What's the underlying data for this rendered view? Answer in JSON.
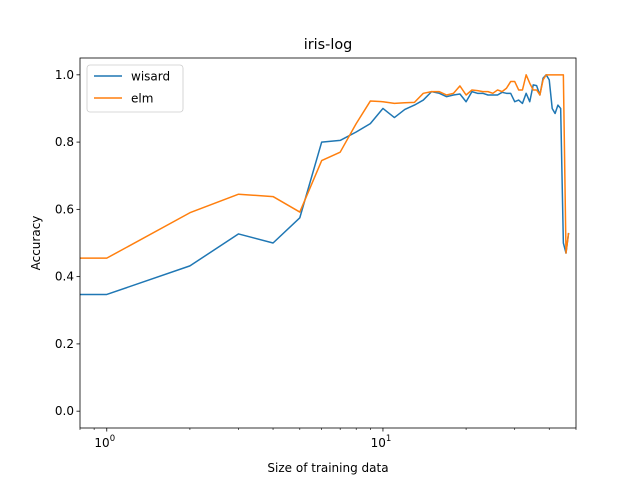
{
  "chart_data": {
    "type": "line",
    "title": "iris-log",
    "xlabel": "Size of training data",
    "ylabel": "Accuracy",
    "xscale": "log",
    "xlim": [
      0.8,
      50
    ],
    "ylim": [
      -0.05,
      1.05
    ],
    "xticks": [
      {
        "value": 1,
        "label": "10",
        "exp": "0"
      },
      {
        "value": 10,
        "label": "10",
        "exp": "1"
      }
    ],
    "yticks": [
      {
        "value": 0.0,
        "label": "0.0"
      },
      {
        "value": 0.2,
        "label": "0.2"
      },
      {
        "value": 0.4,
        "label": "0.4"
      },
      {
        "value": 0.6,
        "label": "0.6"
      },
      {
        "value": 0.8,
        "label": "0.8"
      },
      {
        "value": 1.0,
        "label": "1.0"
      }
    ],
    "legend": "top-left",
    "grid": false,
    "series": [
      {
        "name": "wisard",
        "color": "#1f77b4",
        "x": [
          0.8,
          1,
          2,
          3,
          4,
          5,
          6,
          7,
          8,
          9,
          10,
          11,
          12,
          13,
          14,
          15,
          16,
          17,
          18,
          19,
          20,
          21,
          22,
          23,
          24,
          25,
          26,
          27,
          28,
          29,
          30,
          31,
          32,
          33,
          34,
          35,
          36,
          37,
          38,
          39,
          40,
          41,
          42,
          43,
          44,
          45,
          46,
          47
        ],
        "y": [
          0.347,
          0.347,
          0.432,
          0.527,
          0.5,
          0.575,
          0.8,
          0.805,
          0.83,
          0.855,
          0.9,
          0.873,
          0.897,
          0.91,
          0.925,
          0.95,
          0.945,
          0.935,
          0.94,
          0.943,
          0.92,
          0.95,
          0.945,
          0.945,
          0.94,
          0.94,
          0.94,
          0.948,
          0.945,
          0.945,
          0.92,
          0.925,
          0.915,
          0.945,
          0.92,
          0.97,
          0.968,
          0.94,
          0.99,
          1.0,
          0.985,
          0.9,
          0.885,
          0.91,
          0.9,
          0.5,
          0.47,
          0.53
        ]
      },
      {
        "name": "elm",
        "color": "#ff7f0e",
        "x": [
          0.8,
          1,
          2,
          3,
          4,
          5,
          6,
          7,
          8,
          9,
          10,
          11,
          12,
          13,
          14,
          15,
          16,
          17,
          18,
          19,
          20,
          21,
          22,
          23,
          24,
          25,
          26,
          27,
          28,
          29,
          30,
          31,
          32,
          33,
          34,
          35,
          36,
          37,
          38,
          39,
          40,
          41,
          42,
          43,
          44,
          45,
          46,
          47
        ],
        "y": [
          0.455,
          0.455,
          0.59,
          0.645,
          0.638,
          0.592,
          0.745,
          0.77,
          0.855,
          0.922,
          0.92,
          0.915,
          0.917,
          0.918,
          0.945,
          0.95,
          0.95,
          0.94,
          0.945,
          0.967,
          0.94,
          0.955,
          0.953,
          0.95,
          0.95,
          0.945,
          0.955,
          0.95,
          0.96,
          0.98,
          0.98,
          0.955,
          0.955,
          1.0,
          0.975,
          0.955,
          0.955,
          0.94,
          0.985,
          1.0,
          1.0,
          1.0,
          1.0,
          1.0,
          1.0,
          1.0,
          0.47,
          0.53
        ]
      }
    ]
  }
}
